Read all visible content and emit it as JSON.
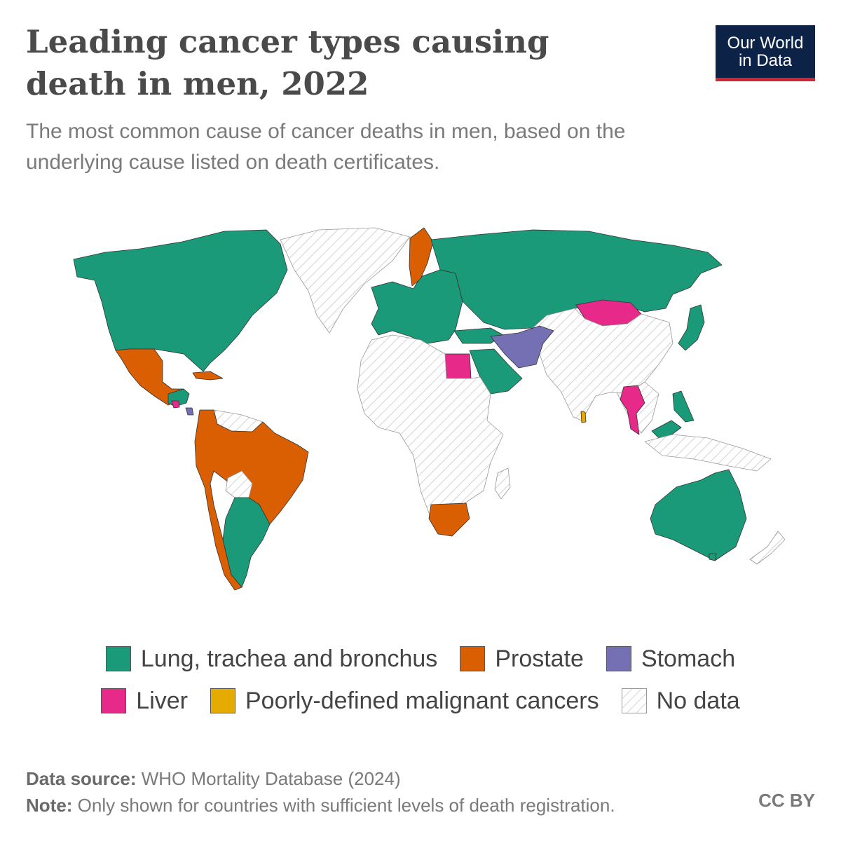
{
  "title": "Leading cancer types causing death in men, 2022",
  "subtitle": "The most common cause of cancer deaths in men, based on the underlying cause listed on death certificates.",
  "logo": {
    "line1": "Our World",
    "line2": "in Data"
  },
  "legend": [
    {
      "label": "Lung, trachea and bronchus",
      "color": "#1a9a78"
    },
    {
      "label": "Prostate",
      "color": "#d95f02"
    },
    {
      "label": "Stomach",
      "color": "#7570b3"
    },
    {
      "label": "Liver",
      "color": "#e7298a"
    },
    {
      "label": "Poorly-defined malignant cancers",
      "color": "#e6ab02"
    },
    {
      "label": "No data",
      "color": "hatch"
    }
  ],
  "footer": {
    "source_label": "Data source:",
    "source_text": "WHO Mortality Database (2024)",
    "note_label": "Note:",
    "note_text": "Only shown for countries with sufficient levels of death registration."
  },
  "license": "CC BY"
}
